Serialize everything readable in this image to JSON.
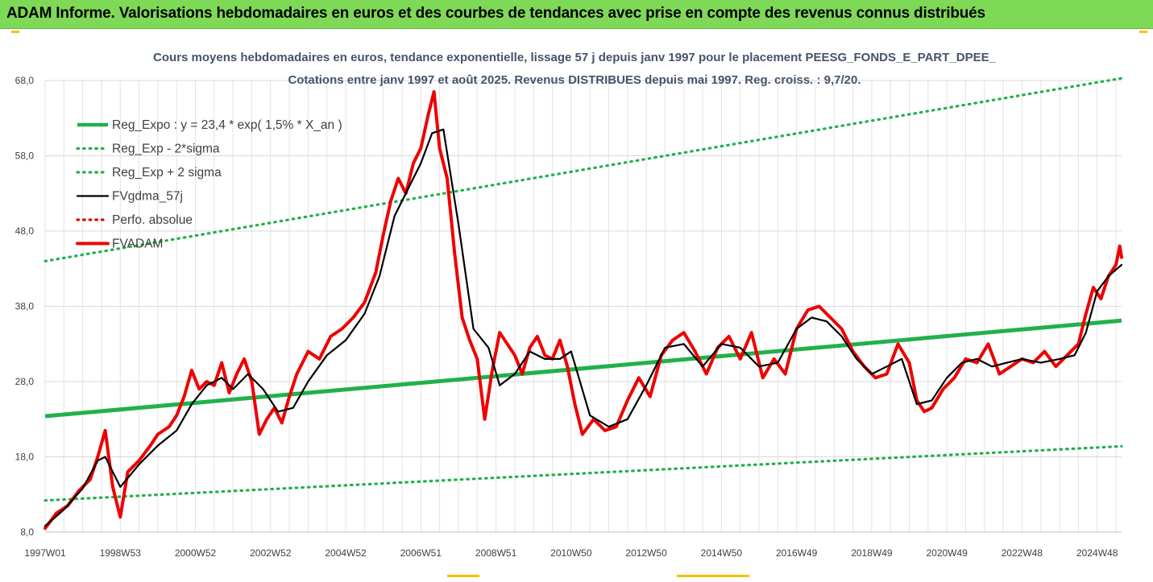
{
  "header": {
    "banner_title": "ADAM Informe. Valorisations hebdomadaires en euros et des courbes de tendances avec prise en compte des revenus connus distribués",
    "banner_color": "#7ed957"
  },
  "chart_data": {
    "type": "line",
    "title": "Cours moyens hebdomadaires en euros, tendance exponentielle, lissage 57 j depuis janv 1997  pour le placement PEESG_FONDS_E_PART_DPEE_",
    "subtitle": "Cotations entre janv 1997 et août 2025. Revenus DISTRIBUES depuis mai 1997. Reg. croiss. : 9,7/20.",
    "xlabel": "",
    "ylabel": "",
    "ylim": [
      8,
      68
    ],
    "xlim": [
      1997.0,
      2025.65
    ],
    "grid": true,
    "legend_position": "top-left",
    "y_ticks": [
      8,
      18,
      28,
      38,
      48,
      58,
      68
    ],
    "y_tick_labels": [
      "8,0",
      "18,0",
      "28,0",
      "38,0",
      "48,0",
      "58,0",
      "68,0"
    ],
    "x_tick_labels": [
      "1997W01",
      "1998W53",
      "2000W52",
      "2002W52",
      "2004W52",
      "2006W51",
      "2008W51",
      "2010W50",
      "2012W50",
      "2014W50",
      "2016W49",
      "2018W49",
      "2020W49",
      "2022W48",
      "2024W48"
    ],
    "x_tick_positions": [
      1997.0,
      1999.0,
      2001.0,
      2003.0,
      2005.0,
      2007.0,
      2009.0,
      2011.0,
      2013.0,
      2015.0,
      2017.0,
      2019.0,
      2021.0,
      2023.0,
      2025.0
    ],
    "series": [
      {
        "name": "Reg_Expo : y = 23,4 * exp( 1,5% *  X_an )",
        "color": "#22b04b",
        "style": "solid",
        "x": [
          1997.0,
          2025.65
        ],
        "y": [
          23.4,
          36.1
        ]
      },
      {
        "name": "Reg_Exp - 2*sigma",
        "color": "#22b04b",
        "style": "dotted",
        "x": [
          1997.0,
          2025.65
        ],
        "y": [
          12.2,
          19.4
        ]
      },
      {
        "name": "Reg_Exp + 2 sigma",
        "color": "#22b04b",
        "style": "dotted",
        "x": [
          1997.0,
          2025.65
        ],
        "y": [
          44.0,
          68.3
        ]
      },
      {
        "name": "FVgdma_57j",
        "color": "#000000",
        "style": "solid",
        "x": [
          1997.0,
          1997.5,
          1998.0,
          1998.4,
          1998.6,
          1999.0,
          1999.5,
          2000.0,
          2000.5,
          2000.9,
          2001.3,
          2001.7,
          2002.0,
          2002.4,
          2002.8,
          2003.2,
          2003.6,
          2004.0,
          2004.5,
          2005.0,
          2005.5,
          2005.9,
          2006.3,
          2006.7,
          2007.0,
          2007.3,
          2007.6,
          2008.0,
          2008.4,
          2008.8,
          2009.1,
          2009.5,
          2009.9,
          2010.3,
          2010.7,
          2011.0,
          2011.5,
          2012.0,
          2012.5,
          2013.0,
          2013.5,
          2014.0,
          2014.5,
          2015.0,
          2015.5,
          2016.0,
          2016.5,
          2017.0,
          2017.4,
          2017.8,
          2018.2,
          2018.6,
          2019.0,
          2019.4,
          2019.8,
          2020.2,
          2020.6,
          2021.0,
          2021.4,
          2021.8,
          2022.2,
          2022.6,
          2023.0,
          2023.5,
          2024.0,
          2024.4,
          2024.7,
          2025.0,
          2025.3,
          2025.65
        ],
        "y": [
          8.8,
          11.0,
          13.8,
          17.5,
          18.0,
          14.0,
          17.0,
          19.5,
          21.5,
          25.0,
          27.5,
          28.5,
          27.0,
          29.0,
          27.0,
          24.0,
          24.5,
          28.0,
          31.5,
          33.5,
          37.0,
          42.0,
          50.0,
          54.0,
          57.0,
          61.0,
          61.5,
          49.0,
          35.0,
          32.5,
          27.5,
          29.0,
          32.0,
          31.0,
          31.0,
          32.0,
          23.5,
          22.0,
          23.0,
          27.5,
          32.5,
          33.0,
          30.0,
          33.0,
          32.5,
          30.0,
          30.5,
          35.0,
          36.5,
          36.0,
          34.0,
          31.0,
          29.0,
          30.0,
          31.0,
          25.0,
          25.5,
          28.5,
          30.5,
          31.0,
          30.0,
          30.5,
          31.0,
          30.5,
          31.0,
          31.5,
          34.5,
          40.0,
          42.0,
          43.5
        ]
      },
      {
        "name": "Perfo. absolue",
        "color": "#e00000",
        "style": "dotted",
        "x": [],
        "y": []
      },
      {
        "name": "FVADAM",
        "color": "#ee0000",
        "style": "solid",
        "x": [
          1997.0,
          1997.3,
          1997.6,
          1997.9,
          1998.2,
          1998.4,
          1998.6,
          1998.8,
          1999.0,
          1999.2,
          1999.5,
          1999.8,
          2000.0,
          2000.3,
          2000.5,
          2000.7,
          2000.9,
          2001.1,
          2001.3,
          2001.5,
          2001.7,
          2001.9,
          2002.1,
          2002.3,
          2002.5,
          2002.7,
          2002.9,
          2003.1,
          2003.3,
          2003.5,
          2003.7,
          2004.0,
          2004.3,
          2004.6,
          2004.9,
          2005.2,
          2005.5,
          2005.8,
          2006.0,
          2006.2,
          2006.4,
          2006.6,
          2006.8,
          2007.0,
          2007.2,
          2007.35,
          2007.5,
          2007.7,
          2007.9,
          2008.1,
          2008.3,
          2008.5,
          2008.7,
          2008.9,
          2009.1,
          2009.3,
          2009.5,
          2009.7,
          2009.9,
          2010.1,
          2010.3,
          2010.5,
          2010.7,
          2010.9,
          2011.1,
          2011.3,
          2011.6,
          2011.9,
          2012.2,
          2012.5,
          2012.8,
          2013.1,
          2013.4,
          2013.7,
          2014.0,
          2014.3,
          2014.6,
          2014.9,
          2015.2,
          2015.5,
          2015.8,
          2016.1,
          2016.4,
          2016.7,
          2017.0,
          2017.3,
          2017.6,
          2017.9,
          2018.2,
          2018.5,
          2018.8,
          2019.1,
          2019.4,
          2019.7,
          2020.0,
          2020.2,
          2020.4,
          2020.6,
          2020.9,
          2021.2,
          2021.5,
          2021.8,
          2022.1,
          2022.4,
          2022.7,
          2023.0,
          2023.3,
          2023.6,
          2023.9,
          2024.2,
          2024.5,
          2024.7,
          2024.9,
          2025.1,
          2025.3,
          2025.5,
          2025.6,
          2025.65
        ],
        "y": [
          8.5,
          10.5,
          11.5,
          13.5,
          15.0,
          18.0,
          21.5,
          14.0,
          10.0,
          16.0,
          17.5,
          19.5,
          21.0,
          22.0,
          23.5,
          26.0,
          29.5,
          27.0,
          28.0,
          27.5,
          30.5,
          26.5,
          29.0,
          31.0,
          28.0,
          21.0,
          23.0,
          24.5,
          22.5,
          26.0,
          29.0,
          32.0,
          31.0,
          34.0,
          35.0,
          36.5,
          38.5,
          42.5,
          47.5,
          52.0,
          55.0,
          53.0,
          57.0,
          59.0,
          63.5,
          66.5,
          59.0,
          55.0,
          45.0,
          36.5,
          33.5,
          31.0,
          23.0,
          29.5,
          34.5,
          33.0,
          31.5,
          29.0,
          32.5,
          34.0,
          31.5,
          31.0,
          33.5,
          30.0,
          25.0,
          21.0,
          23.0,
          21.5,
          22.0,
          25.5,
          28.5,
          26.0,
          31.5,
          33.5,
          34.5,
          32.0,
          29.0,
          32.5,
          34.0,
          31.0,
          34.5,
          28.5,
          31.0,
          29.0,
          35.0,
          37.5,
          38.0,
          36.5,
          35.0,
          32.0,
          30.0,
          28.5,
          29.0,
          33.0,
          30.5,
          25.5,
          24.0,
          24.5,
          27.0,
          28.5,
          31.0,
          30.5,
          33.0,
          29.0,
          30.0,
          31.0,
          30.5,
          32.0,
          30.0,
          31.5,
          33.0,
          37.0,
          40.5,
          39.0,
          42.0,
          43.5,
          46.0,
          44.5
        ]
      }
    ]
  }
}
